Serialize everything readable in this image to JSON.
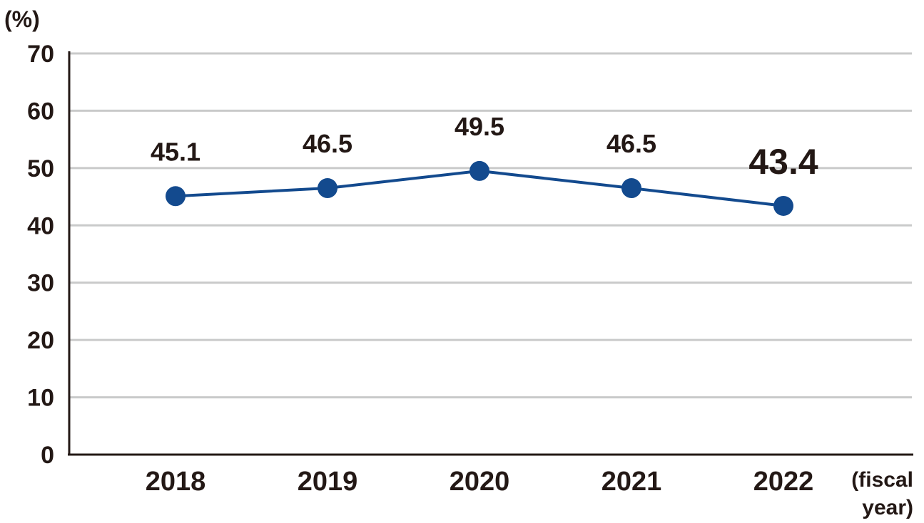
{
  "chart_data": {
    "type": "line",
    "ylabel": "(%)",
    "xlabel": "(fiscal year)",
    "xlabel_lines": [
      "(fiscal",
      "year)"
    ],
    "categories": [
      "2018",
      "2019",
      "2020",
      "2021",
      "2022"
    ],
    "series": [
      {
        "values": [
          45.1,
          46.5,
          49.5,
          46.5,
          43.4
        ],
        "labels": [
          "45.1",
          "46.5",
          "49.5",
          "46.5",
          "43.4"
        ]
      }
    ],
    "ylim": [
      0,
      70
    ],
    "yticks": [
      "0",
      "10",
      "20",
      "30",
      "40",
      "50",
      "60",
      "70"
    ],
    "grid": true,
    "highlight_index": 4
  },
  "colors": {
    "line": "#134a8e",
    "marker": "#134a8e",
    "grid": "#c9caca",
    "axis": "#231815",
    "text": "#231815"
  }
}
